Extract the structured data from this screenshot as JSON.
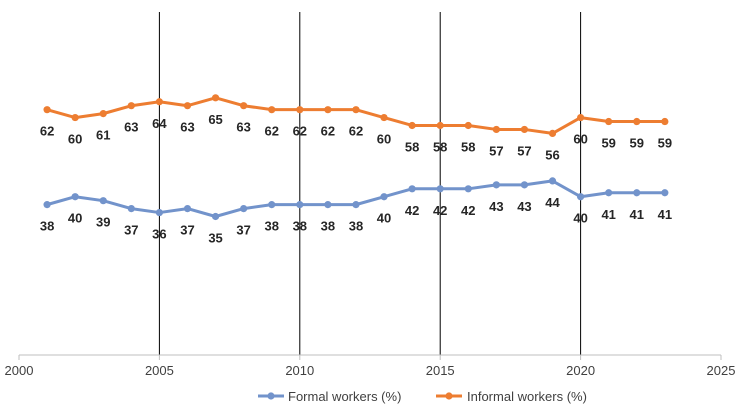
{
  "chart_data": {
    "type": "line",
    "title": "",
    "xlabel": "",
    "ylabel": "",
    "xlim": [
      2000,
      2025
    ],
    "ylim": [
      0,
      75
    ],
    "x_ticks": [
      2000,
      2005,
      2010,
      2015,
      2020,
      2025
    ],
    "grid": "vertical lines at 2005, 2010, 2015, 2020",
    "legend_position": "bottom",
    "x": [
      2001,
      2002,
      2003,
      2004,
      2005,
      2006,
      2007,
      2008,
      2009,
      2010,
      2011,
      2012,
      2013,
      2014,
      2015,
      2016,
      2017,
      2018,
      2019,
      2020,
      2021,
      2022,
      2023
    ],
    "series": [
      {
        "name": "Formal workers (%)",
        "color": "#7293cb",
        "values": [
          38,
          40,
          39,
          37,
          36,
          37,
          35,
          37,
          38,
          38,
          38,
          38,
          40,
          42,
          42,
          42,
          43,
          43,
          44,
          40,
          41,
          41,
          41
        ]
      },
      {
        "name": "Informal workers  (%)",
        "color": "#ed7d31",
        "values": [
          62,
          60,
          61,
          63,
          64,
          63,
          65,
          63,
          62,
          62,
          62,
          62,
          60,
          58,
          58,
          58,
          57,
          57,
          56,
          60,
          59,
          59,
          59
        ]
      }
    ]
  }
}
